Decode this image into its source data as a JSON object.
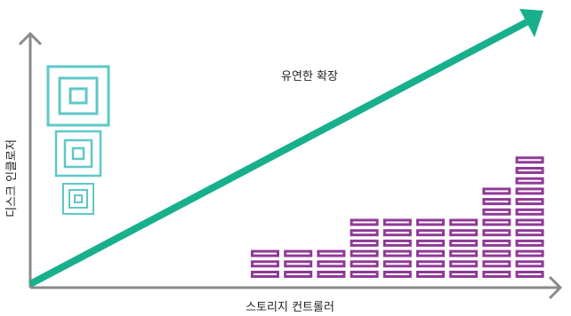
{
  "diagram": {
    "title": "유연한 확장",
    "y_axis_label": "디스크 인클로저",
    "x_axis_label": "스토리지 컨트롤러"
  },
  "colors": {
    "axis": "#8a8a8a",
    "arrow": "#18b08c",
    "square": "#5ec8c7",
    "disk": "#8f3a96",
    "disk_slot": "#ffffff"
  },
  "enclosure_icons": [
    {
      "name": "enclosure-large",
      "size": "large"
    },
    {
      "name": "enclosure-medium",
      "size": "medium"
    },
    {
      "name": "enclosure-small",
      "size": "small"
    }
  ],
  "disk_stacks": [
    3,
    3,
    3,
    6,
    6,
    6,
    6,
    9,
    12
  ]
}
